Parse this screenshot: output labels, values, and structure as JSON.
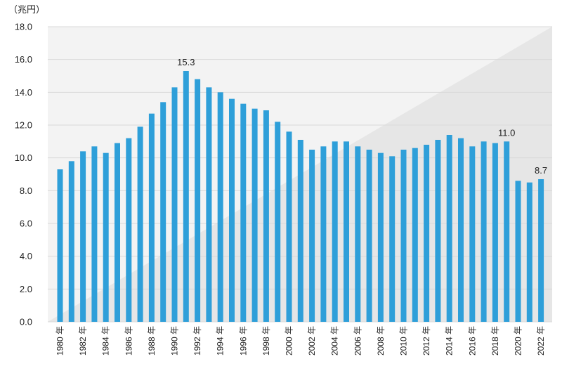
{
  "chart_data": {
    "type": "bar",
    "unit_label": "（兆円）",
    "colors": {
      "bar": "#2e9fd9",
      "grid": "#d9d9d9",
      "bg_light": "#f3f3f3",
      "bg_dark": "#e6e6e6"
    },
    "ylim": [
      0,
      18
    ],
    "yticks": [
      "0.0",
      "2.0",
      "4.0",
      "6.0",
      "8.0",
      "10.0",
      "12.0",
      "14.0",
      "16.0",
      "18.0"
    ],
    "grid": true,
    "categories": [
      "1980",
      "1981",
      "1982",
      "1983",
      "1984",
      "1985",
      "1986",
      "1987",
      "1988",
      "1989",
      "1990",
      "1991",
      "1992",
      "1993",
      "1994",
      "1995",
      "1996",
      "1997",
      "1998",
      "1999",
      "2000",
      "2001",
      "2002",
      "2003",
      "2004",
      "2005",
      "2006",
      "2007",
      "2008",
      "2009",
      "2010",
      "2011",
      "2012",
      "2013",
      "2014",
      "2015",
      "2016",
      "2017",
      "2018",
      "2019",
      "2020",
      "2021",
      "2022"
    ],
    "x_tick_labels": [
      "1980 年",
      "1982 年",
      "1984 年",
      "1986 年",
      "1988 年",
      "1990 年",
      "1992 年",
      "1994 年",
      "1996 年",
      "1998 年",
      "2000 年",
      "2002 年",
      "2004 年",
      "2006 年",
      "2008 年",
      "2010 年",
      "2012 年",
      "2014 年",
      "2016 年",
      "2018 年",
      "2020 年",
      "2022 年"
    ],
    "values": [
      9.3,
      9.8,
      10.4,
      10.7,
      10.3,
      10.9,
      11.2,
      11.9,
      12.7,
      13.4,
      14.3,
      15.3,
      14.8,
      14.3,
      14.0,
      13.6,
      13.3,
      13.0,
      12.9,
      12.2,
      11.6,
      11.1,
      10.5,
      10.7,
      11.0,
      11.0,
      10.7,
      10.5,
      10.3,
      10.1,
      10.5,
      10.6,
      10.8,
      11.1,
      11.4,
      11.2,
      10.7,
      11.0,
      10.9,
      11.0,
      8.6,
      8.5,
      8.7
    ],
    "data_labels": [
      {
        "index": 11,
        "text": "15.3"
      },
      {
        "index": 39,
        "text": "11.0"
      },
      {
        "index": 42,
        "text": "8.7"
      }
    ]
  }
}
